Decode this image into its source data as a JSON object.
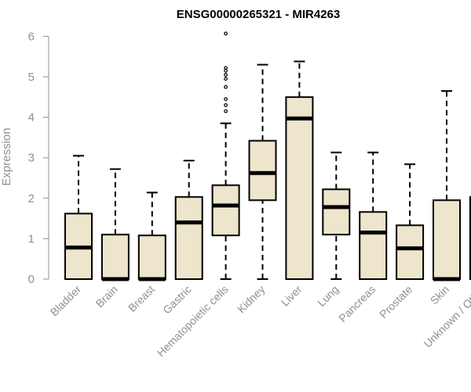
{
  "chart_data": {
    "type": "boxplot",
    "title": "ENSG00000265321 - MIR4263",
    "xlabel": "",
    "ylabel": "Expression",
    "ylim": [
      0,
      6
    ],
    "yticks": [
      0,
      1,
      2,
      3,
      4,
      5,
      6
    ],
    "grid": false,
    "legend": "none",
    "colors": {
      "box_fill": "#ede5cc",
      "box_stroke": "#000000",
      "outlier": "#000000",
      "axis": "#909090"
    },
    "categories": [
      "Bladder",
      "Brain",
      "Breast",
      "Gastric",
      "Hematopoietic cells",
      "Kidney",
      "Liver",
      "Lung",
      "Pancreas",
      "Prostate",
      "Skin",
      "Unknown / Other"
    ],
    "boxes": [
      {
        "category": "Bladder",
        "whisker_low": 0,
        "q1": 0,
        "median": 0.78,
        "q3": 1.62,
        "whisker_high": 3.05,
        "outliers": []
      },
      {
        "category": "Brain",
        "whisker_low": 0,
        "q1": 0,
        "median": 0,
        "q3": 1.1,
        "whisker_high": 2.72,
        "outliers": []
      },
      {
        "category": "Breast",
        "whisker_low": 0,
        "q1": 0,
        "median": 0,
        "q3": 1.08,
        "whisker_high": 2.14,
        "outliers": []
      },
      {
        "category": "Gastric",
        "whisker_low": 0,
        "q1": 0,
        "median": 1.4,
        "q3": 2.03,
        "whisker_high": 2.93,
        "outliers": []
      },
      {
        "category": "Hematopoietic cells",
        "whisker_low": 0,
        "q1": 1.08,
        "median": 1.82,
        "q3": 2.32,
        "whisker_high": 3.85,
        "outliers": [
          4.15,
          4.3,
          4.45,
          4.75,
          4.95,
          5.05,
          5.15,
          5.22,
          6.07
        ]
      },
      {
        "category": "Kidney",
        "whisker_low": 0,
        "q1": 1.95,
        "median": 2.62,
        "q3": 3.42,
        "whisker_high": 5.3,
        "outliers": []
      },
      {
        "category": "Liver",
        "whisker_low": 0,
        "q1": 0,
        "median": 3.97,
        "q3": 4.5,
        "whisker_high": 5.38,
        "outliers": []
      },
      {
        "category": "Lung",
        "whisker_low": 0,
        "q1": 1.1,
        "median": 1.78,
        "q3": 2.22,
        "whisker_high": 3.13,
        "outliers": []
      },
      {
        "category": "Pancreas",
        "whisker_low": 0,
        "q1": 0,
        "median": 1.15,
        "q3": 1.66,
        "whisker_high": 3.13,
        "outliers": []
      },
      {
        "category": "Prostate",
        "whisker_low": 0,
        "q1": 0,
        "median": 0.76,
        "q3": 1.33,
        "whisker_high": 2.84,
        "outliers": []
      },
      {
        "category": "Skin",
        "whisker_low": 0,
        "q1": 0,
        "median": 0,
        "q3": 1.95,
        "whisker_high": 4.65,
        "outliers": []
      },
      {
        "category": "Unknown / Other",
        "whisker_low": 0,
        "q1": 0,
        "median": 1.34,
        "q3": 2.03,
        "whisker_high": 4.55,
        "outliers": []
      }
    ]
  }
}
